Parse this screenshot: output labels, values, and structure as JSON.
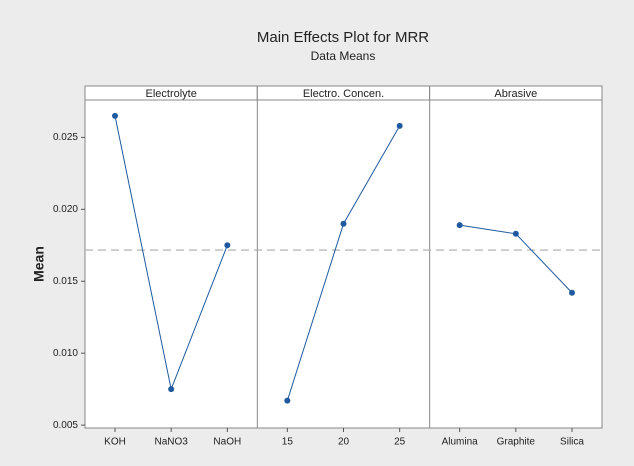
{
  "chart_data": {
    "type": "line",
    "title": "Main Effects Plot for MRR",
    "subtitle": "Data Means",
    "ylabel": "Mean",
    "color": "#1f5aa0",
    "reference_line": 0.01717,
    "ylim": [
      0.0048,
      0.0276
    ],
    "yticks": [
      0.005,
      {
        "value": 0.01,
        "label": "0.010"
      },
      0.015,
      {
        "value": 0.02,
        "label": "0.020"
      },
      0.025
    ],
    "panels": [
      {
        "name": "Electrolyte",
        "categories": [
          "KOH",
          "NaNO3",
          "NaOH"
        ],
        "values": [
          0.0265,
          0.0075,
          0.0175
        ]
      },
      {
        "name": "Electro. Concen.",
        "categories": [
          "15",
          "20",
          "25"
        ],
        "values": [
          0.0067,
          0.019,
          0.0258
        ]
      },
      {
        "name": "Abrasive",
        "categories": [
          "Alumina",
          "Graphite",
          "Silica"
        ],
        "values": [
          0.0189,
          0.0183,
          0.0142
        ]
      }
    ]
  }
}
